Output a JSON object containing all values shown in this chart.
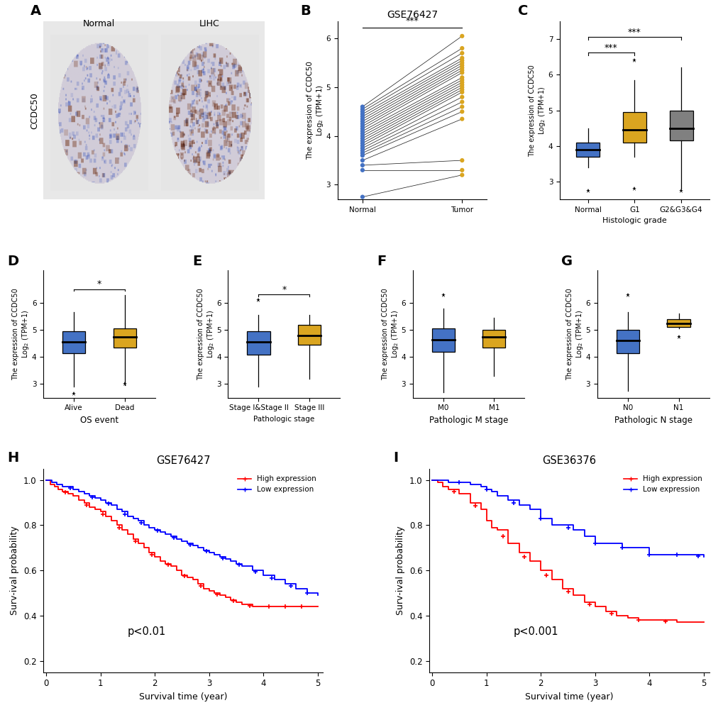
{
  "panel_A": {
    "label": "A",
    "title_normal": "Normal",
    "title_lihc": "LIHC",
    "ylabel": "CCDC50"
  },
  "panel_B": {
    "label": "B",
    "title": "GSE76427",
    "xlabel_normal": "Normal",
    "xlabel_tumor": "Tumor",
    "ylabel": "The expression of CCDC50\nLog2 (TPM+1)",
    "significance": "***",
    "ylim": [
      2.7,
      6.35
    ],
    "yticks": [
      3,
      4,
      5,
      6
    ],
    "normal_vals": [
      4.6,
      4.55,
      4.5,
      4.45,
      4.4,
      4.35,
      4.3,
      4.25,
      4.2,
      4.15,
      4.1,
      4.05,
      4.0,
      3.95,
      3.9,
      3.85,
      3.8,
      3.75,
      3.7,
      3.65,
      3.6,
      3.5,
      3.4,
      3.3,
      2.75
    ],
    "tumor_vals": [
      6.05,
      5.8,
      5.7,
      5.6,
      5.55,
      5.5,
      5.45,
      5.4,
      5.35,
      5.3,
      5.2,
      5.15,
      5.1,
      5.05,
      5.0,
      4.95,
      4.9,
      4.8,
      4.7,
      4.6,
      4.5,
      4.35,
      3.5,
      3.3,
      3.2
    ],
    "dot_color_normal": "#4472c4",
    "dot_color_tumor": "#DAA520",
    "line_color": "black"
  },
  "panel_C": {
    "label": "C",
    "ylabel": "The expression of CCDC50\nLog2 (TPM+1)",
    "xlabel": "Histologic grade",
    "categories": [
      "Normal",
      "G1",
      "G2&G3&G4"
    ],
    "colors": [
      "#4472c4",
      "#DAA520",
      "#808080"
    ],
    "ylim": [
      2.5,
      7.5
    ],
    "yticks": [
      3,
      4,
      5,
      6,
      7
    ],
    "boxes": [
      {
        "median": 3.9,
        "q1": 3.7,
        "q3": 4.1,
        "whislo": 3.4,
        "whishi": 4.5,
        "fliers": [
          2.75
        ]
      },
      {
        "median": 4.45,
        "q1": 4.1,
        "q3": 4.95,
        "whislo": 3.7,
        "whishi": 5.85,
        "fliers": [
          2.8,
          6.4
        ]
      },
      {
        "median": 4.5,
        "q1": 4.15,
        "q3": 5.0,
        "whislo": 2.8,
        "whishi": 6.2,
        "fliers": [
          2.75
        ]
      }
    ],
    "sig_pairs": [
      [
        "Normal",
        "G1",
        "***"
      ],
      [
        "Normal",
        "G2&G3&G4",
        "***"
      ]
    ]
  },
  "panel_D": {
    "label": "D",
    "ylabel": "The expression of CCDC50\nLog2 (TPM+1)",
    "xlabel": "OS event",
    "categories": [
      "Alive",
      "Dead"
    ],
    "colors": [
      "#4472c4",
      "#DAA520"
    ],
    "ylim": [
      2.5,
      7.2
    ],
    "yticks": [
      3,
      4,
      5,
      6
    ],
    "boxes": [
      {
        "median": 4.55,
        "q1": 4.15,
        "q3": 4.95,
        "whislo": 2.9,
        "whishi": 5.65,
        "fliers": [
          2.65
        ]
      },
      {
        "median": 4.75,
        "q1": 4.35,
        "q3": 5.05,
        "whislo": 2.95,
        "whishi": 6.3,
        "fliers": [
          3.0
        ]
      }
    ],
    "sig_pairs": [
      [
        "Alive",
        "Dead",
        "*"
      ]
    ]
  },
  "panel_E": {
    "label": "E",
    "ylabel": "The expression of CCDC50\nLog2 (TPM+1)",
    "xlabel": "Pathologic stage",
    "categories": [
      "Stage I&Stage II",
      "Stage III"
    ],
    "colors": [
      "#4472c4",
      "#DAA520"
    ],
    "ylim": [
      2.5,
      7.2
    ],
    "yticks": [
      3,
      4,
      5,
      6
    ],
    "boxes": [
      {
        "median": 4.55,
        "q1": 4.1,
        "q3": 4.95,
        "whislo": 2.9,
        "whishi": 5.55,
        "fliers": [
          6.1
        ]
      },
      {
        "median": 4.8,
        "q1": 4.45,
        "q3": 5.2,
        "whislo": 3.2,
        "whishi": 5.55,
        "fliers": []
      }
    ],
    "sig_pairs": [
      [
        "Stage I&Stage II",
        "Stage III",
        "*"
      ]
    ]
  },
  "panel_F": {
    "label": "F",
    "ylabel": "The expression of CCDC50\nLog2 (TPM+1)",
    "xlabel": "Pathologic M stage",
    "categories": [
      "M0",
      "M1"
    ],
    "colors": [
      "#4472c4",
      "#DAA520"
    ],
    "ylim": [
      2.5,
      7.2
    ],
    "yticks": [
      3,
      4,
      5,
      6
    ],
    "boxes": [
      {
        "median": 4.65,
        "q1": 4.2,
        "q3": 5.05,
        "whislo": 2.7,
        "whishi": 5.8,
        "fliers": [
          6.3
        ]
      },
      {
        "median": 4.75,
        "q1": 4.35,
        "q3": 5.0,
        "whislo": 3.3,
        "whishi": 5.45,
        "fliers": []
      }
    ],
    "sig_pairs": []
  },
  "panel_G": {
    "label": "G",
    "ylabel": "The expression of CCDC50\nLog2 (TPM+1)",
    "xlabel": "Pathologic N stage",
    "categories": [
      "N0",
      "N1"
    ],
    "colors": [
      "#4472c4",
      "#DAA520"
    ],
    "ylim": [
      2.5,
      7.2
    ],
    "yticks": [
      3,
      4,
      5,
      6
    ],
    "boxes": [
      {
        "median": 4.6,
        "q1": 4.15,
        "q3": 5.0,
        "whislo": 2.75,
        "whishi": 5.65,
        "fliers": [
          6.3
        ]
      },
      {
        "median": 5.25,
        "q1": 5.1,
        "q3": 5.4,
        "whislo": 5.05,
        "whishi": 5.6,
        "fliers": [
          4.75
        ]
      }
    ],
    "sig_pairs": []
  },
  "panel_H": {
    "label": "H",
    "title": "GSE76427",
    "xlabel": "Survival time (year)",
    "ylabel": "Surv ival probability",
    "pvalue": "p<0.01",
    "ylim": [
      0.15,
      1.05
    ],
    "yticks": [
      0.2,
      0.4,
      0.6,
      0.8,
      1.0
    ],
    "high_color": "#FF0000",
    "low_color": "#0000FF",
    "high_x": [
      0,
      0.08,
      0.15,
      0.22,
      0.3,
      0.4,
      0.5,
      0.6,
      0.7,
      0.8,
      0.9,
      1.0,
      1.1,
      1.2,
      1.3,
      1.4,
      1.5,
      1.6,
      1.7,
      1.8,
      1.9,
      2.0,
      2.1,
      2.2,
      2.3,
      2.4,
      2.5,
      2.6,
      2.7,
      2.8,
      2.9,
      3.0,
      3.1,
      3.2,
      3.3,
      3.4,
      3.5,
      3.6,
      3.8,
      4.0,
      4.2,
      4.4,
      4.6,
      4.8,
      5.0
    ],
    "high_y": [
      1.0,
      0.98,
      0.97,
      0.96,
      0.95,
      0.94,
      0.93,
      0.91,
      0.9,
      0.88,
      0.87,
      0.86,
      0.84,
      0.82,
      0.8,
      0.78,
      0.76,
      0.74,
      0.72,
      0.7,
      0.68,
      0.66,
      0.64,
      0.63,
      0.62,
      0.6,
      0.58,
      0.57,
      0.56,
      0.54,
      0.52,
      0.51,
      0.5,
      0.49,
      0.48,
      0.47,
      0.46,
      0.45,
      0.44,
      0.44,
      0.44,
      0.44,
      0.44,
      0.44,
      0.44
    ],
    "low_x": [
      0,
      0.1,
      0.2,
      0.3,
      0.4,
      0.5,
      0.6,
      0.7,
      0.8,
      0.9,
      1.0,
      1.1,
      1.2,
      1.3,
      1.4,
      1.5,
      1.6,
      1.7,
      1.8,
      1.9,
      2.0,
      2.1,
      2.2,
      2.3,
      2.4,
      2.5,
      2.6,
      2.7,
      2.8,
      2.9,
      3.0,
      3.1,
      3.2,
      3.3,
      3.4,
      3.5,
      3.6,
      3.8,
      4.0,
      4.2,
      4.4,
      4.6,
      4.8,
      5.0
    ],
    "low_y": [
      1.0,
      0.99,
      0.98,
      0.97,
      0.97,
      0.96,
      0.95,
      0.94,
      0.93,
      0.92,
      0.91,
      0.9,
      0.89,
      0.87,
      0.86,
      0.84,
      0.83,
      0.82,
      0.8,
      0.79,
      0.78,
      0.77,
      0.76,
      0.75,
      0.74,
      0.73,
      0.72,
      0.71,
      0.7,
      0.69,
      0.68,
      0.67,
      0.66,
      0.65,
      0.64,
      0.63,
      0.62,
      0.6,
      0.58,
      0.56,
      0.54,
      0.52,
      0.5,
      0.49
    ],
    "high_censor_x": [
      0.35,
      0.75,
      1.05,
      1.35,
      1.65,
      1.95,
      2.25,
      2.55,
      2.85,
      3.15,
      3.45,
      3.75,
      4.1,
      4.4,
      4.7
    ],
    "low_censor_x": [
      0.45,
      0.85,
      1.15,
      1.45,
      1.75,
      2.05,
      2.35,
      2.65,
      2.95,
      3.25,
      3.55,
      3.85,
      4.15,
      4.5,
      4.8
    ]
  },
  "panel_I": {
    "label": "I",
    "title": "GSE36376",
    "xlabel": "Survival time (year)",
    "ylabel": "Surv ival probability",
    "pvalue": "p<0.001",
    "ylim": [
      0.15,
      1.05
    ],
    "yticks": [
      0.2,
      0.4,
      0.6,
      0.8,
      1.0
    ],
    "high_color": "#FF0000",
    "low_color": "#0000FF",
    "high_x": [
      0,
      0.1,
      0.2,
      0.3,
      0.5,
      0.7,
      0.9,
      1.0,
      1.1,
      1.2,
      1.4,
      1.6,
      1.8,
      2.0,
      2.2,
      2.4,
      2.6,
      2.8,
      3.0,
      3.2,
      3.4,
      3.6,
      3.8,
      4.0,
      4.5,
      5.0
    ],
    "high_y": [
      1.0,
      0.99,
      0.97,
      0.96,
      0.94,
      0.9,
      0.87,
      0.82,
      0.79,
      0.78,
      0.72,
      0.68,
      0.64,
      0.6,
      0.56,
      0.52,
      0.49,
      0.46,
      0.44,
      0.42,
      0.4,
      0.39,
      0.38,
      0.38,
      0.37,
      0.37
    ],
    "low_x": [
      0,
      0.1,
      0.2,
      0.3,
      0.5,
      0.7,
      0.9,
      1.0,
      1.1,
      1.2,
      1.4,
      1.6,
      1.8,
      2.0,
      2.2,
      2.4,
      2.6,
      2.8,
      3.0,
      3.5,
      4.0,
      4.5,
      5.0
    ],
    "low_y": [
      1.0,
      1.0,
      1.0,
      0.99,
      0.99,
      0.98,
      0.97,
      0.96,
      0.95,
      0.93,
      0.91,
      0.89,
      0.87,
      0.83,
      0.8,
      0.8,
      0.78,
      0.75,
      0.72,
      0.7,
      0.67,
      0.67,
      0.66
    ],
    "high_censor_x": [
      0.4,
      0.8,
      1.3,
      1.7,
      2.1,
      2.5,
      2.9,
      3.3,
      3.8,
      4.3
    ],
    "low_censor_x": [
      0.5,
      1.0,
      1.5,
      2.0,
      2.5,
      3.0,
      3.5,
      4.0,
      4.5,
      4.9
    ]
  },
  "bg_color": "#ffffff"
}
